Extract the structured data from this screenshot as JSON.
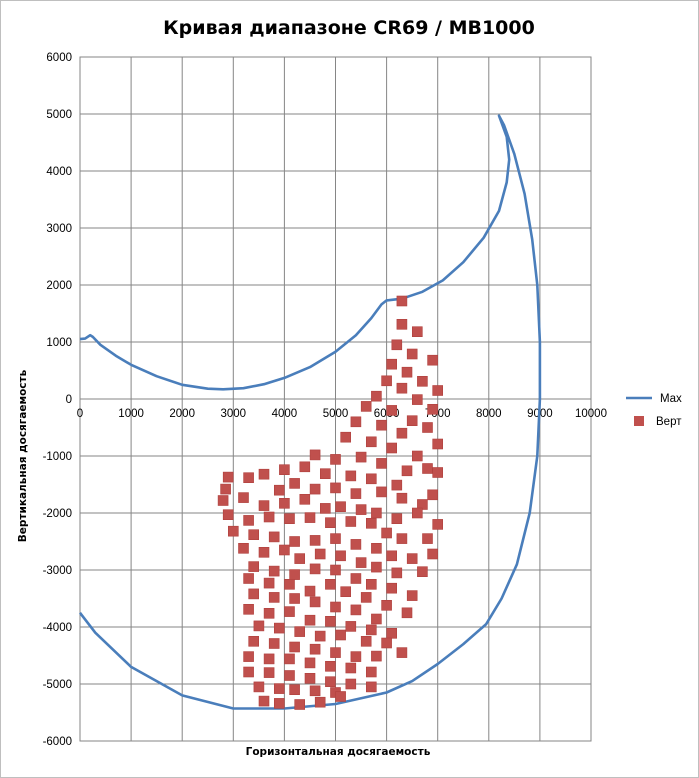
{
  "chart_data": {
    "type": "scatter",
    "title": "Кривая диапазоне CR69 / MB1000",
    "xlabel": "Горизонтальная  досягаемость",
    "ylabel": "Вертикальная  досягаемость",
    "xlim": [
      0,
      10000
    ],
    "ylim": [
      -6000,
      6000
    ],
    "x_ticks": [
      0,
      1000,
      2000,
      3000,
      4000,
      5000,
      6000,
      7000,
      8000,
      9000,
      10000
    ],
    "y_ticks": [
      6000,
      5000,
      4000,
      3000,
      2000,
      1000,
      0,
      -1000,
      -2000,
      -3000,
      -4000,
      -5000,
      -6000
    ],
    "grid": true,
    "legend_position": "right",
    "colors": {
      "max": "#4a7ebb",
      "vert": "#c0504d",
      "grid": "#868686"
    },
    "series": [
      {
        "name": "Max",
        "kind": "line",
        "points": [
          [
            0,
            1050
          ],
          [
            100,
            1060
          ],
          [
            200,
            1120
          ],
          [
            250,
            1090
          ],
          [
            400,
            950
          ],
          [
            700,
            760
          ],
          [
            1000,
            600
          ],
          [
            1500,
            400
          ],
          [
            2000,
            250
          ],
          [
            2500,
            180
          ],
          [
            2800,
            170
          ],
          [
            3200,
            190
          ],
          [
            3600,
            260
          ],
          [
            4000,
            370
          ],
          [
            4500,
            560
          ],
          [
            5000,
            830
          ],
          [
            5400,
            1120
          ],
          [
            5700,
            1420
          ],
          [
            5900,
            1660
          ],
          [
            6000,
            1730
          ],
          [
            6300,
            1760
          ],
          [
            6700,
            1880
          ],
          [
            7100,
            2080
          ],
          [
            7500,
            2400
          ],
          [
            7900,
            2830
          ],
          [
            8200,
            3300
          ],
          [
            8350,
            3800
          ],
          [
            8400,
            4200
          ],
          [
            8350,
            4600
          ],
          [
            8200,
            4970
          ],
          [
            8300,
            4800
          ],
          [
            8500,
            4300
          ],
          [
            8700,
            3600
          ],
          [
            8850,
            2800
          ],
          [
            8950,
            2000
          ],
          [
            9000,
            1000
          ],
          [
            9000,
            0
          ],
          [
            8950,
            -1000
          ],
          [
            8800,
            -2000
          ],
          [
            8550,
            -2900
          ],
          [
            8250,
            -3500
          ],
          [
            7950,
            -3950
          ],
          [
            7500,
            -4300
          ],
          [
            7000,
            -4650
          ],
          [
            6500,
            -4950
          ],
          [
            6000,
            -5150
          ],
          [
            5000,
            -5350
          ],
          [
            4000,
            -5430
          ],
          [
            3000,
            -5430
          ],
          [
            2000,
            -5200
          ],
          [
            1000,
            -4700
          ],
          [
            300,
            -4100
          ],
          [
            0,
            -3750
          ]
        ]
      },
      {
        "name": "Верт",
        "kind": "scatter",
        "points": [
          [
            6300,
            1720
          ],
          [
            6300,
            1310
          ],
          [
            6600,
            1180
          ],
          [
            6200,
            950
          ],
          [
            6500,
            790
          ],
          [
            6900,
            680
          ],
          [
            6100,
            610
          ],
          [
            6400,
            470
          ],
          [
            6700,
            310
          ],
          [
            7000,
            150
          ],
          [
            6000,
            320
          ],
          [
            6300,
            190
          ],
          [
            5800,
            50
          ],
          [
            6600,
            -10
          ],
          [
            6900,
            -180
          ],
          [
            5600,
            -130
          ],
          [
            6100,
            -200
          ],
          [
            6500,
            -380
          ],
          [
            6800,
            -500
          ],
          [
            5400,
            -400
          ],
          [
            5900,
            -460
          ],
          [
            6300,
            -600
          ],
          [
            7000,
            -790
          ],
          [
            5200,
            -670
          ],
          [
            5700,
            -750
          ],
          [
            6100,
            -860
          ],
          [
            6600,
            -1000
          ],
          [
            4600,
            -980
          ],
          [
            5000,
            -1060
          ],
          [
            5500,
            -1020
          ],
          [
            5900,
            -1130
          ],
          [
            6400,
            -1260
          ],
          [
            6800,
            -1220
          ],
          [
            4000,
            -1240
          ],
          [
            4400,
            -1190
          ],
          [
            4800,
            -1310
          ],
          [
            5300,
            -1350
          ],
          [
            5700,
            -1400
          ],
          [
            6200,
            -1510
          ],
          [
            7000,
            -1290
          ],
          [
            3600,
            -1320
          ],
          [
            2900,
            -1370
          ],
          [
            3300,
            -1380
          ],
          [
            3900,
            -1600
          ],
          [
            4200,
            -1480
          ],
          [
            4600,
            -1580
          ],
          [
            5000,
            -1560
          ],
          [
            5400,
            -1660
          ],
          [
            5900,
            -1630
          ],
          [
            6300,
            -1740
          ],
          [
            6700,
            -1850
          ],
          [
            6900,
            -1680
          ],
          [
            2850,
            -1580
          ],
          [
            3200,
            -1730
          ],
          [
            3600,
            -1870
          ],
          [
            4000,
            -1830
          ],
          [
            4400,
            -1760
          ],
          [
            4800,
            -1920
          ],
          [
            5100,
            -1890
          ],
          [
            5500,
            -1940
          ],
          [
            5800,
            -2000
          ],
          [
            6200,
            -2100
          ],
          [
            6600,
            -2000
          ],
          [
            7000,
            -2200
          ],
          [
            2900,
            -2030
          ],
          [
            3300,
            -2130
          ],
          [
            3700,
            -2070
          ],
          [
            4100,
            -2100
          ],
          [
            4500,
            -2080
          ],
          [
            4900,
            -2170
          ],
          [
            5300,
            -2150
          ],
          [
            5700,
            -2180
          ],
          [
            6000,
            -2350
          ],
          [
            6300,
            -2450
          ],
          [
            6800,
            -2450
          ],
          [
            3000,
            -2320
          ],
          [
            3400,
            -2380
          ],
          [
            3800,
            -2420
          ],
          [
            4200,
            -2500
          ],
          [
            4600,
            -2480
          ],
          [
            5000,
            -2450
          ],
          [
            5400,
            -2550
          ],
          [
            5800,
            -2620
          ],
          [
            6100,
            -2750
          ],
          [
            6500,
            -2800
          ],
          [
            6900,
            -2720
          ],
          [
            3200,
            -2620
          ],
          [
            3600,
            -2690
          ],
          [
            4000,
            -2650
          ],
          [
            4300,
            -2800
          ],
          [
            4700,
            -2720
          ],
          [
            5100,
            -2750
          ],
          [
            5500,
            -2870
          ],
          [
            5800,
            -2950
          ],
          [
            6200,
            -3050
          ],
          [
            6700,
            -3030
          ],
          [
            3400,
            -2940
          ],
          [
            3800,
            -3020
          ],
          [
            4200,
            -3080
          ],
          [
            4600,
            -2980
          ],
          [
            5000,
            -3000
          ],
          [
            5400,
            -3150
          ],
          [
            5700,
            -3250
          ],
          [
            6100,
            -3320
          ],
          [
            6500,
            -3450
          ],
          [
            3300,
            -3150
          ],
          [
            3700,
            -3230
          ],
          [
            4100,
            -3250
          ],
          [
            4500,
            -3370
          ],
          [
            4900,
            -3250
          ],
          [
            5200,
            -3380
          ],
          [
            5600,
            -3480
          ],
          [
            6000,
            -3620
          ],
          [
            6400,
            -3750
          ],
          [
            3400,
            -3420
          ],
          [
            3800,
            -3480
          ],
          [
            4200,
            -3500
          ],
          [
            4600,
            -3560
          ],
          [
            5000,
            -3650
          ],
          [
            5400,
            -3700
          ],
          [
            5800,
            -3860
          ],
          [
            3300,
            -3690
          ],
          [
            3700,
            -3760
          ],
          [
            4100,
            -3730
          ],
          [
            4500,
            -3880
          ],
          [
            4900,
            -3900
          ],
          [
            5300,
            -3990
          ],
          [
            5700,
            -4050
          ],
          [
            6100,
            -4110
          ],
          [
            3500,
            -3980
          ],
          [
            3900,
            -4020
          ],
          [
            4300,
            -4080
          ],
          [
            4700,
            -4160
          ],
          [
            5100,
            -4140
          ],
          [
            5600,
            -4250
          ],
          [
            6000,
            -4280
          ],
          [
            3400,
            -4250
          ],
          [
            3800,
            -4290
          ],
          [
            4200,
            -4350
          ],
          [
            4600,
            -4390
          ],
          [
            5000,
            -4450
          ],
          [
            5400,
            -4520
          ],
          [
            5800,
            -4510
          ],
          [
            3300,
            -4520
          ],
          [
            3700,
            -4560
          ],
          [
            4100,
            -4560
          ],
          [
            4500,
            -4630
          ],
          [
            4900,
            -4690
          ],
          [
            5300,
            -4720
          ],
          [
            5700,
            -4790
          ],
          [
            3300,
            -4790
          ],
          [
            3700,
            -4800
          ],
          [
            4100,
            -4850
          ],
          [
            4500,
            -4900
          ],
          [
            4900,
            -4960
          ],
          [
            5300,
            -5000
          ],
          [
            3500,
            -5050
          ],
          [
            3900,
            -5080
          ],
          [
            4200,
            -5100
          ],
          [
            4600,
            -5120
          ],
          [
            5000,
            -5150
          ],
          [
            3600,
            -5300
          ],
          [
            3900,
            -5340
          ],
          [
            4300,
            -5360
          ],
          [
            4700,
            -5320
          ],
          [
            5100,
            -5220
          ],
          [
            5700,
            -5050
          ],
          [
            2800,
            -1780
          ],
          [
            6300,
            -4450
          ]
        ]
      }
    ]
  }
}
